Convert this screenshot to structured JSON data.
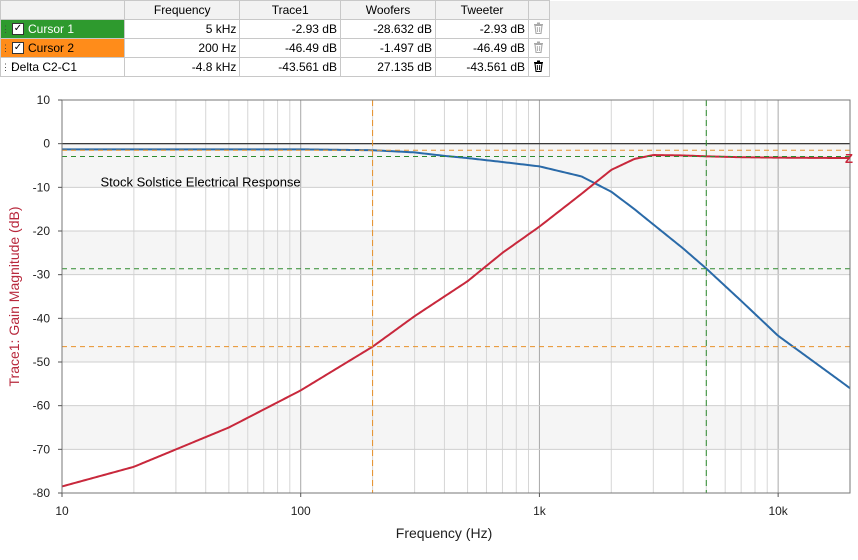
{
  "table": {
    "headers": [
      "",
      "Frequency",
      "Trace1",
      "Woofers",
      "Tweeter"
    ],
    "rows": [
      {
        "name": "Cursor 1",
        "checkbox": true,
        "bg": "#2e9a2e",
        "text_color": "#ffffff",
        "frequency": "5 kHz",
        "trace1": "-2.93 dB",
        "woofers": "-28.632 dB",
        "tweeter": "-2.93 dB",
        "icon": "trash-icon"
      },
      {
        "name": "Cursor 2",
        "checkbox": true,
        "bg": "#ff8c1a",
        "text_color": "#000000",
        "frequency": "200 Hz",
        "trace1": "-46.49 dB",
        "woofers": "-1.497 dB",
        "tweeter": "-46.49 dB",
        "icon": "trash-icon"
      },
      {
        "name": "Delta C2-C1",
        "checkbox": false,
        "bg": "#ffffff",
        "text_color": "#000000",
        "frequency": "-4.8 kHz",
        "trace1": "-43.561 dB",
        "woofers": "27.135 dB",
        "tweeter": "-43.561 dB",
        "icon": "trash-icon"
      }
    ]
  },
  "chart_data": {
    "type": "line",
    "title": "Stock Solstice Electrical Response",
    "xlabel": "Frequency (Hz)",
    "ylabel": "Trace1: Gain Magnitude (dB)",
    "xscale": "log",
    "xlim": [
      10,
      20000
    ],
    "ylim": [
      -80,
      10
    ],
    "xticks": [
      {
        "value": 10,
        "label": "10"
      },
      {
        "value": 100,
        "label": "100"
      },
      {
        "value": 1000,
        "label": "1k"
      },
      {
        "value": 10000,
        "label": "10k"
      }
    ],
    "yticks": [
      10,
      0,
      -10,
      -20,
      -30,
      -40,
      -50,
      -60,
      -70,
      -80
    ],
    "grid": true,
    "series": [
      {
        "color": "#2a6aa8",
        "x": [
          10,
          30,
          100,
          200,
          300,
          400,
          500,
          700,
          1000,
          1500,
          2000,
          2500,
          3000,
          4000,
          5000,
          7000,
          10000,
          15000,
          20000
        ],
        "y": [
          -1.3,
          -1.3,
          -1.3,
          -1.5,
          -2,
          -2.8,
          -3.3,
          -4.2,
          -5.2,
          -7.5,
          -11,
          -15,
          -18.5,
          -24,
          -28.6,
          -36,
          -44,
          -51,
          -56
        ]
      },
      {
        "color": "#c8283c",
        "x": [
          10,
          20,
          50,
          100,
          200,
          300,
          500,
          700,
          1000,
          1500,
          2000,
          2500,
          3000,
          4000,
          5000,
          7000,
          10000,
          20000
        ],
        "y": [
          -78.5,
          -74,
          -65,
          -56.5,
          -46.5,
          -39.5,
          -31.5,
          -25,
          -19,
          -11.5,
          -6,
          -3.5,
          -2.6,
          -2.7,
          -2.9,
          -3.1,
          -3.2,
          -3.3
        ]
      }
    ],
    "reference_line_y": 0,
    "cursors": [
      {
        "name": "Cursor 1",
        "x": 5000,
        "y_levels": [
          -2.93,
          -28.632
        ],
        "color": "#2e8b2e"
      },
      {
        "name": "Cursor 2",
        "x": 200,
        "y_levels": [
          -46.49,
          -1.497
        ],
        "color": "#e8922a"
      }
    ],
    "right_marker": "Z"
  }
}
